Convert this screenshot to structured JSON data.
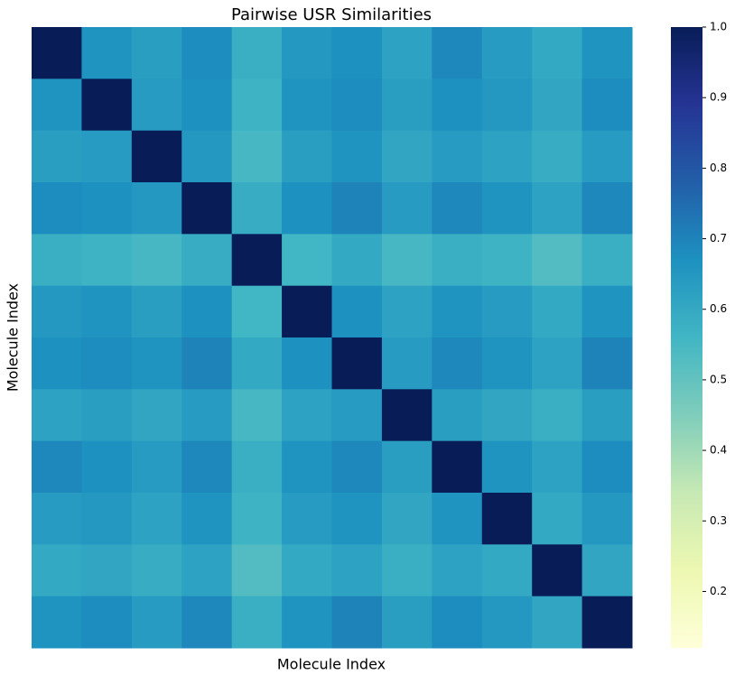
{
  "chart_data": {
    "type": "heatmap",
    "title": "Pairwise USR Similarities",
    "x_label": "Molecule Index",
    "y_label": "Molecule Index",
    "colormap": "YlGnBu",
    "z": [
      [
        1,
        0.66,
        0.63,
        0.68,
        0.58,
        0.65,
        0.67,
        0.62,
        0.69,
        0.64,
        0.6,
        0.66
      ],
      [
        0.66,
        1,
        0.64,
        0.67,
        0.57,
        0.66,
        0.68,
        0.63,
        0.67,
        0.65,
        0.61,
        0.68
      ],
      [
        0.63,
        0.64,
        1,
        0.65,
        0.55,
        0.63,
        0.66,
        0.61,
        0.64,
        0.62,
        0.59,
        0.64
      ],
      [
        0.68,
        0.67,
        0.65,
        1,
        0.59,
        0.67,
        0.7,
        0.64,
        0.69,
        0.66,
        0.62,
        0.69
      ],
      [
        0.58,
        0.57,
        0.55,
        0.59,
        1,
        0.56,
        0.6,
        0.55,
        0.58,
        0.57,
        0.53,
        0.58
      ],
      [
        0.65,
        0.66,
        0.63,
        0.67,
        0.56,
        1,
        0.67,
        0.62,
        0.66,
        0.64,
        0.6,
        0.66
      ],
      [
        0.67,
        0.68,
        0.66,
        0.7,
        0.6,
        0.67,
        1,
        0.64,
        0.69,
        0.66,
        0.62,
        0.7
      ],
      [
        0.62,
        0.63,
        0.61,
        0.64,
        0.55,
        0.62,
        0.64,
        1,
        0.63,
        0.61,
        0.58,
        0.63
      ],
      [
        0.69,
        0.67,
        0.64,
        0.69,
        0.58,
        0.66,
        0.69,
        0.63,
        1,
        0.66,
        0.62,
        0.68
      ],
      [
        0.64,
        0.65,
        0.62,
        0.66,
        0.57,
        0.64,
        0.66,
        0.61,
        0.66,
        1,
        0.6,
        0.65
      ],
      [
        0.6,
        0.61,
        0.59,
        0.62,
        0.53,
        0.6,
        0.62,
        0.58,
        0.62,
        0.6,
        1,
        0.61
      ],
      [
        0.66,
        0.68,
        0.64,
        0.69,
        0.58,
        0.66,
        0.7,
        0.63,
        0.68,
        0.65,
        0.61,
        1
      ]
    ],
    "clim": [
      0.12,
      1.0
    ],
    "cticks": [
      0.2,
      0.3,
      0.4,
      0.5,
      0.6,
      0.7,
      0.8,
      0.9,
      {
        "value": 1,
        "label": "1.0"
      }
    ]
  }
}
